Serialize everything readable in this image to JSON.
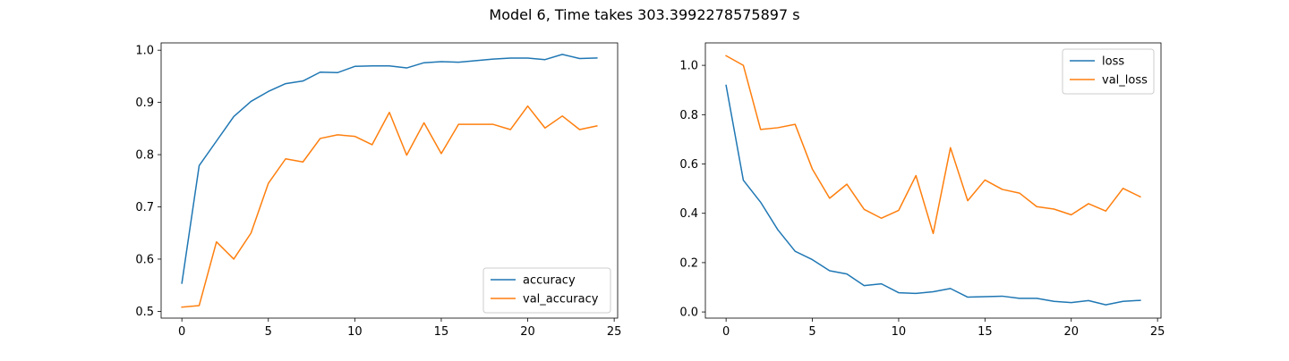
{
  "figure": {
    "title": "Model 6, Time takes 303.3992278575897 s"
  },
  "chart_data": [
    {
      "type": "line",
      "x": [
        0,
        1,
        2,
        3,
        4,
        5,
        6,
        7,
        8,
        9,
        10,
        11,
        12,
        13,
        14,
        15,
        16,
        17,
        18,
        19,
        20,
        21,
        22,
        23,
        24
      ],
      "xlim": [
        -1.2,
        25.2
      ],
      "ylim": [
        0.487,
        1.014
      ],
      "xticks": [
        0,
        5,
        10,
        15,
        20,
        25
      ],
      "xtick_labels": [
        "0",
        "5",
        "10",
        "15",
        "20",
        "25"
      ],
      "yticks": [
        0.5,
        0.6,
        0.7,
        0.8,
        0.9,
        1.0
      ],
      "ytick_labels": [
        "0.5",
        "0.6",
        "0.7",
        "0.8",
        "0.9",
        "1.0"
      ],
      "legend_position": "lower right",
      "series": [
        {
          "name": "accuracy",
          "color": "#1f77b4",
          "values": [
            0.554,
            0.779,
            0.826,
            0.873,
            0.902,
            0.921,
            0.936,
            0.941,
            0.958,
            0.957,
            0.969,
            0.97,
            0.97,
            0.966,
            0.976,
            0.978,
            0.977,
            0.98,
            0.983,
            0.985,
            0.985,
            0.982,
            0.992,
            0.984,
            0.985
          ]
        },
        {
          "name": "val_accuracy",
          "color": "#ff7f0e",
          "values": [
            0.508,
            0.511,
            0.633,
            0.6,
            0.65,
            0.745,
            0.792,
            0.786,
            0.831,
            0.838,
            0.835,
            0.819,
            0.881,
            0.799,
            0.861,
            0.802,
            0.858,
            0.858,
            0.858,
            0.848,
            0.893,
            0.851,
            0.874,
            0.848,
            0.855
          ]
        }
      ]
    },
    {
      "type": "line",
      "x": [
        0,
        1,
        2,
        3,
        4,
        5,
        6,
        7,
        8,
        9,
        10,
        11,
        12,
        13,
        14,
        15,
        16,
        17,
        18,
        19,
        20,
        21,
        22,
        23,
        24
      ],
      "xlim": [
        -1.2,
        25.2
      ],
      "ylim": [
        -0.025,
        1.091
      ],
      "xticks": [
        0,
        5,
        10,
        15,
        20,
        25
      ],
      "xtick_labels": [
        "0",
        "5",
        "10",
        "15",
        "20",
        "25"
      ],
      "yticks": [
        0.0,
        0.2,
        0.4,
        0.6,
        0.8,
        1.0
      ],
      "ytick_labels": [
        "0.0",
        "0.2",
        "0.4",
        "0.6",
        "0.8",
        "1.0"
      ],
      "legend_position": "upper right",
      "series": [
        {
          "name": "loss",
          "color": "#1f77b4",
          "values": [
            0.919,
            0.534,
            0.445,
            0.333,
            0.246,
            0.212,
            0.167,
            0.154,
            0.107,
            0.114,
            0.078,
            0.075,
            0.082,
            0.095,
            0.06,
            0.062,
            0.064,
            0.055,
            0.055,
            0.043,
            0.038,
            0.046,
            0.029,
            0.043,
            0.047
          ]
        },
        {
          "name": "val_loss",
          "color": "#ff7f0e",
          "values": [
            1.039,
            1.0,
            0.74,
            0.747,
            0.761,
            0.579,
            0.461,
            0.518,
            0.416,
            0.38,
            0.412,
            0.553,
            0.318,
            0.666,
            0.451,
            0.535,
            0.497,
            0.482,
            0.427,
            0.417,
            0.394,
            0.439,
            0.409,
            0.501,
            0.467
          ]
        }
      ]
    }
  ]
}
